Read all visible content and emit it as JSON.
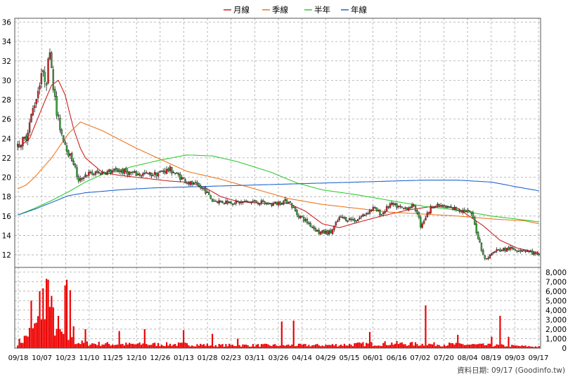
{
  "chart_data": {
    "type": "candlestick",
    "legend": [
      {
        "name": "月線",
        "color": "#cc2222"
      },
      {
        "name": "季線",
        "color": "#ee7722"
      },
      {
        "name": "半年",
        "color": "#33cc33"
      },
      {
        "name": "年線",
        "color": "#2266cc"
      }
    ],
    "price_axis": {
      "ylim": [
        10.7,
        36.4
      ],
      "ticks": [
        12,
        14,
        16,
        18,
        20,
        22,
        24,
        26,
        28,
        30,
        32,
        34,
        36
      ]
    },
    "volume_axis": {
      "ylim": [
        0,
        8500
      ],
      "ticks": [
        0,
        1000,
        2000,
        3000,
        4000,
        5000,
        6000,
        7000,
        8000
      ],
      "tick_labels": [
        "0",
        "1,000",
        "2,000",
        "3,000",
        "4,000",
        "5,000",
        "6,000",
        "7,000",
        "8,000"
      ]
    },
    "x_labels": [
      "09/18",
      "10/07",
      "10/23",
      "11/10",
      "11/25",
      "12/10",
      "12/26",
      "01/13",
      "01/28",
      "02/23",
      "03/11",
      "03/26",
      "04/14",
      "04/29",
      "05/15",
      "06/01",
      "06/16",
      "07/02",
      "07/20",
      "08/04",
      "08/19",
      "09/03",
      "09/17"
    ],
    "price_keypoints": [
      [
        0,
        23.2
      ],
      [
        5,
        24.2
      ],
      [
        9,
        27
      ],
      [
        12,
        29
      ],
      [
        14,
        30.8
      ],
      [
        17,
        30
      ],
      [
        19,
        33.5
      ],
      [
        21,
        29.5
      ],
      [
        23,
        26.5
      ],
      [
        26,
        24.5
      ],
      [
        30,
        22.5
      ],
      [
        33,
        21.5
      ],
      [
        36,
        19.5
      ],
      [
        40,
        20.3
      ],
      [
        50,
        20.5
      ],
      [
        60,
        20.7
      ],
      [
        70,
        20.3
      ],
      [
        80,
        20.3
      ],
      [
        90,
        20.8
      ],
      [
        100,
        19.5
      ],
      [
        110,
        18.8
      ],
      [
        115,
        17.6
      ],
      [
        120,
        17.5
      ],
      [
        130,
        17.4
      ],
      [
        140,
        17.5
      ],
      [
        150,
        17.2
      ],
      [
        160,
        17.6
      ],
      [
        165,
        16.2
      ],
      [
        170,
        15.5
      ],
      [
        178,
        14.3
      ],
      [
        185,
        14.3
      ],
      [
        190,
        15.8
      ],
      [
        200,
        15.6
      ],
      [
        210,
        16.8
      ],
      [
        215,
        16.2
      ],
      [
        220,
        17.2
      ],
      [
        228,
        16.8
      ],
      [
        233,
        17
      ],
      [
        236,
        16.5
      ],
      [
        238,
        15
      ],
      [
        245,
        17.1
      ],
      [
        255,
        16.9
      ],
      [
        262,
        16.6
      ],
      [
        268,
        16.3
      ],
      [
        272,
        13.8
      ],
      [
        276,
        11.5
      ],
      [
        282,
        12.4
      ],
      [
        290,
        12.6
      ],
      [
        300,
        12.5
      ],
      [
        308,
        11.9
      ]
    ],
    "volume_keypoints": [
      [
        0,
        600
      ],
      [
        3,
        800
      ],
      [
        6,
        1500
      ],
      [
        9,
        2000
      ],
      [
        12,
        2500
      ],
      [
        14,
        3500
      ],
      [
        16,
        2500
      ],
      [
        18,
        1500
      ],
      [
        19,
        4500
      ],
      [
        21,
        2500
      ],
      [
        23,
        2000
      ],
      [
        26,
        1500
      ],
      [
        30,
        1000
      ],
      [
        35,
        600
      ],
      [
        40,
        500
      ],
      [
        60,
        400
      ],
      [
        80,
        400
      ],
      [
        100,
        400
      ],
      [
        120,
        300
      ],
      [
        140,
        300
      ],
      [
        160,
        300
      ],
      [
        180,
        300
      ],
      [
        200,
        400
      ],
      [
        220,
        500
      ],
      [
        240,
        400
      ],
      [
        260,
        400
      ],
      [
        280,
        300
      ],
      [
        300,
        200
      ],
      [
        308,
        150
      ]
    ],
    "volume_spikes": [
      [
        8,
        5000
      ],
      [
        13,
        6000
      ],
      [
        15,
        6300
      ],
      [
        17,
        7300
      ],
      [
        18,
        7200
      ],
      [
        20,
        5500
      ],
      [
        21,
        4300
      ],
      [
        24,
        3400
      ],
      [
        28,
        6600
      ],
      [
        29,
        7200
      ],
      [
        31,
        6100
      ],
      [
        33,
        2300
      ],
      [
        40,
        2000
      ],
      [
        60,
        1800
      ],
      [
        75,
        2000
      ],
      [
        98,
        1900
      ],
      [
        115,
        1500
      ],
      [
        130,
        1000
      ],
      [
        156,
        2800
      ],
      [
        163,
        2900
      ],
      [
        208,
        1700
      ],
      [
        241,
        4500
      ],
      [
        260,
        1400
      ],
      [
        280,
        1200
      ],
      [
        285,
        3400
      ],
      [
        290,
        1200
      ]
    ],
    "ma_keypoints": {
      "月線": [
        [
          0,
          23
        ],
        [
          7,
          24
        ],
        [
          14,
          27
        ],
        [
          20,
          29.5
        ],
        [
          24,
          30
        ],
        [
          28,
          28.5
        ],
        [
          33,
          25
        ],
        [
          37,
          23
        ],
        [
          40,
          22
        ],
        [
          50,
          20.5
        ],
        [
          60,
          20.2
        ],
        [
          70,
          20
        ],
        [
          80,
          19.8
        ],
        [
          90,
          19.6
        ],
        [
          100,
          19.5
        ],
        [
          110,
          19
        ],
        [
          120,
          18
        ],
        [
          130,
          17.5
        ],
        [
          145,
          17.3
        ],
        [
          160,
          17.3
        ],
        [
          170,
          16.5
        ],
        [
          180,
          15.2
        ],
        [
          190,
          14.8
        ],
        [
          200,
          15.3
        ],
        [
          215,
          16
        ],
        [
          230,
          16.6
        ],
        [
          245,
          17
        ],
        [
          260,
          16.8
        ],
        [
          275,
          15
        ],
        [
          285,
          13.5
        ],
        [
          295,
          12.7
        ],
        [
          308,
          12.2
        ]
      ],
      "季線": [
        [
          0,
          18.8
        ],
        [
          5,
          19.2
        ],
        [
          10,
          20
        ],
        [
          20,
          22
        ],
        [
          30,
          24.5
        ],
        [
          37,
          25.7
        ],
        [
          50,
          24.8
        ],
        [
          70,
          23
        ],
        [
          85,
          21.8
        ],
        [
          100,
          20.6
        ],
        [
          120,
          19.8
        ],
        [
          140,
          18.8
        ],
        [
          160,
          17.8
        ],
        [
          180,
          17.2
        ],
        [
          200,
          16.8
        ],
        [
          220,
          16.4
        ],
        [
          240,
          16.2
        ],
        [
          260,
          16
        ],
        [
          280,
          15.7
        ],
        [
          300,
          15.5
        ],
        [
          308,
          15.2
        ]
      ],
      "半年": [
        [
          0,
          16.1
        ],
        [
          10,
          16.8
        ],
        [
          20,
          17.6
        ],
        [
          30,
          18.5
        ],
        [
          40,
          19.5
        ],
        [
          50,
          20.3
        ],
        [
          70,
          21.2
        ],
        [
          85,
          21.8
        ],
        [
          100,
          22.3
        ],
        [
          115,
          22.2
        ],
        [
          130,
          21.6
        ],
        [
          150,
          20.5
        ],
        [
          165,
          19.4
        ],
        [
          180,
          18.7
        ],
        [
          200,
          18.2
        ],
        [
          220,
          17.6
        ],
        [
          240,
          17
        ],
        [
          260,
          16.6
        ],
        [
          280,
          16
        ],
        [
          308,
          15.4
        ]
      ],
      "年線": [
        [
          0,
          16.1
        ],
        [
          10,
          16.7
        ],
        [
          20,
          17.4
        ],
        [
          30,
          18.1
        ],
        [
          40,
          18.4
        ],
        [
          60,
          18.7
        ],
        [
          80,
          18.9
        ],
        [
          100,
          19
        ],
        [
          120,
          19.1
        ],
        [
          140,
          19.2
        ],
        [
          160,
          19.3
        ],
        [
          180,
          19.4
        ],
        [
          200,
          19.5
        ],
        [
          220,
          19.6
        ],
        [
          240,
          19.7
        ],
        [
          260,
          19.7
        ],
        [
          280,
          19.5
        ],
        [
          295,
          19
        ],
        [
          308,
          18.6
        ]
      ]
    }
  },
  "source_label": "資料日期: 09/17  (Goodinfo.tw)",
  "colors": {
    "up": "#dd2222",
    "down": "#33aa33",
    "volume": "#ee0000",
    "grid": "#aaaaaa",
    "frame": "#555555"
  }
}
